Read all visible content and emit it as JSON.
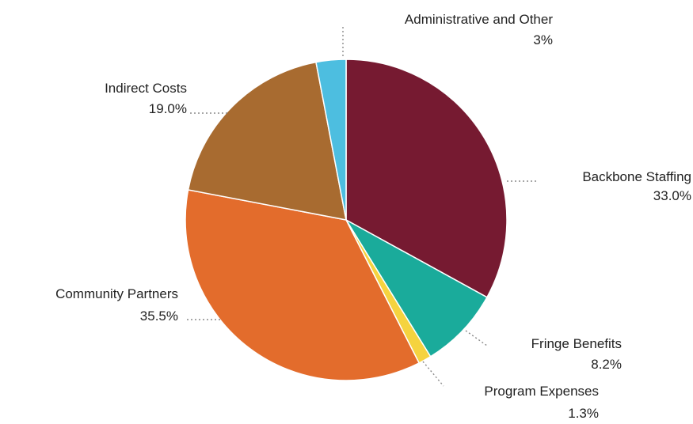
{
  "chart_data": {
    "type": "pie",
    "title": "",
    "start_angle_deg": 0,
    "direction": "clockwise",
    "slices": [
      {
        "label": "Backbone Staffing",
        "value_label": "33.0%",
        "value": 33.0,
        "color": "#761a31"
      },
      {
        "label": "Fringe Benefits",
        "value_label": "8.2%",
        "value": 8.2,
        "color": "#1aab9b"
      },
      {
        "label": "Program Expenses",
        "value_label": "1.3%",
        "value": 1.3,
        "color": "#f5d33f"
      },
      {
        "label": "Community Partners",
        "value_label": "35.5%",
        "value": 35.5,
        "color": "#e36c2c"
      },
      {
        "label": "Indirect Costs",
        "value_label": "19.0%",
        "value": 19.0,
        "color": "#a86b30"
      },
      {
        "label": "Administrative and Other",
        "value_label": "3%",
        "value": 3.0,
        "color": "#4dbee0"
      }
    ]
  }
}
